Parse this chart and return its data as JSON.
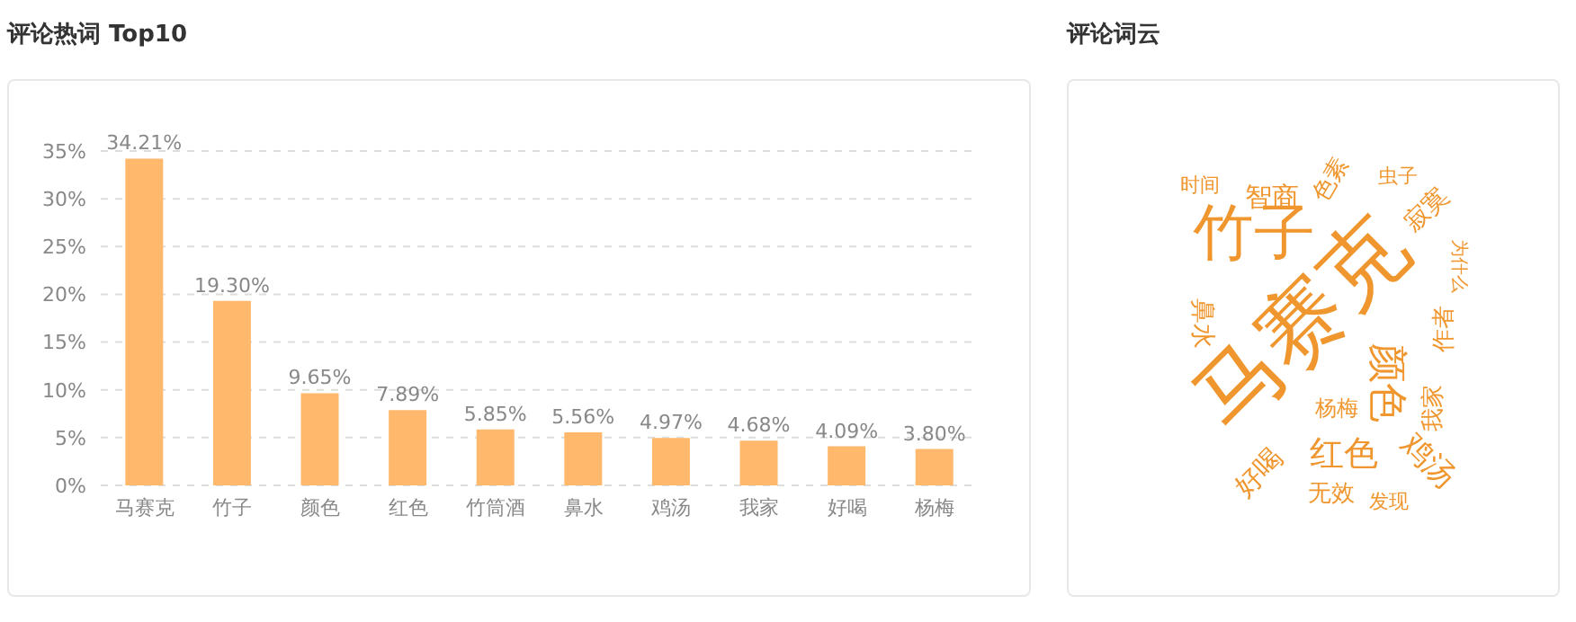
{
  "chart_data": [
    {
      "type": "bar",
      "title": "评论热词 Top10",
      "categories": [
        "马赛克",
        "竹子",
        "颜色",
        "红色",
        "竹筒酒",
        "鼻水",
        "鸡汤",
        "我家",
        "好喝",
        "杨梅"
      ],
      "values": [
        34.21,
        19.3,
        9.65,
        7.89,
        5.85,
        5.56,
        4.97,
        4.68,
        4.09,
        3.8
      ],
      "value_labels": [
        "34.21%",
        "19.30%",
        "9.65%",
        "7.89%",
        "5.85%",
        "5.56%",
        "4.97%",
        "4.68%",
        "4.09%",
        "3.80%"
      ],
      "color": "#ffb86c",
      "ylim": [
        0,
        35
      ],
      "yticks": [
        {
          "value": 0,
          "label": "0%"
        },
        {
          "value": 5,
          "label": "5%"
        },
        {
          "value": 10,
          "label": "10%"
        },
        {
          "value": 15,
          "label": "15%"
        },
        {
          "value": 20,
          "label": "20%"
        },
        {
          "value": 25,
          "label": "25%"
        },
        {
          "value": 30,
          "label": "30%"
        },
        {
          "value": 35,
          "label": "35%"
        }
      ],
      "grid": "y"
    },
    {
      "type": "other",
      "title": "评论词云",
      "color": "#f0962e",
      "annotations": [
        "马赛克",
        "竹子",
        "颜色",
        "红色",
        "鸡汤",
        "我家",
        "作者",
        "鼻水",
        "杨梅",
        "好喝",
        "无效",
        "发现",
        "时间",
        "智商",
        "色素",
        "虫子",
        "寂寞",
        "为什么"
      ]
    }
  ]
}
